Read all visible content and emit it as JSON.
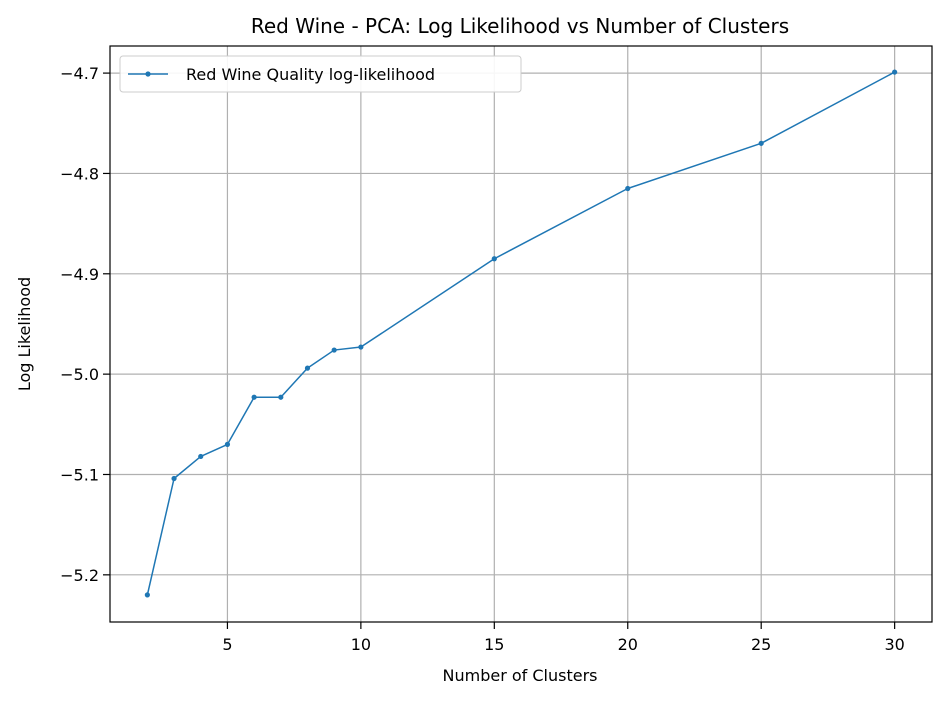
{
  "chart_data": {
    "type": "line",
    "title": "Red Wine - PCA: Log Likelihood vs Number of Clusters",
    "xlabel": "Number of Clusters",
    "ylabel": "Log Likelihood",
    "xlim": [
      0.6,
      31.4
    ],
    "ylim": [
      -5.247,
      -4.673
    ],
    "xticks": [
      5,
      10,
      15,
      20,
      25,
      30
    ],
    "xtick_labels": [
      "5",
      "10",
      "15",
      "20",
      "25",
      "30"
    ],
    "yticks": [
      -5.2,
      -5.1,
      -5.0,
      -4.9,
      -4.8,
      -4.7
    ],
    "ytick_labels": [
      "−5.2",
      "−5.1",
      "−5.0",
      "−4.9",
      "−4.8",
      "−4.7"
    ],
    "grid": true,
    "legend_position": "top-left",
    "series": [
      {
        "name": "Red Wine Quality log-likelihood",
        "color": "#1f77b4",
        "marker": "dot",
        "x": [
          2,
          3,
          4,
          5,
          6,
          7,
          8,
          9,
          10,
          15,
          20,
          25,
          30
        ],
        "y": [
          -5.22,
          -5.104,
          -5.082,
          -5.07,
          -5.023,
          -5.023,
          -4.994,
          -4.976,
          -4.973,
          -4.885,
          -4.815,
          -4.77,
          -4.699
        ]
      }
    ]
  }
}
